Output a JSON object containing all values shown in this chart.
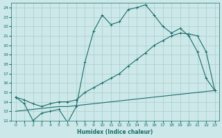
{
  "xlabel": "Humidex (Indice chaleur)",
  "background_color": "#cce8e8",
  "grid_color": "#aacccc",
  "line_color": "#1a6b6b",
  "xlim": [
    -0.5,
    23.5
  ],
  "ylim": [
    12,
    24.5
  ],
  "xticks": [
    0,
    1,
    2,
    3,
    4,
    5,
    6,
    7,
    8,
    9,
    10,
    11,
    12,
    13,
    14,
    15,
    16,
    17,
    18,
    19,
    20,
    21,
    22,
    23
  ],
  "yticks": [
    12,
    13,
    14,
    15,
    16,
    17,
    18,
    19,
    20,
    21,
    22,
    23,
    24
  ],
  "line1_x": [
    0,
    1,
    2,
    3,
    4,
    5,
    6,
    7,
    8,
    9,
    10,
    11,
    12,
    13,
    14,
    15,
    16,
    17,
    18,
    19,
    20,
    21,
    22,
    23
  ],
  "line1_y": [
    14.5,
    13.8,
    12.0,
    12.8,
    13.0,
    13.2,
    11.8,
    13.5,
    18.2,
    21.5,
    23.2,
    22.2,
    22.5,
    23.8,
    24.0,
    24.3,
    23.2,
    22.0,
    21.3,
    21.8,
    21.0,
    19.3,
    16.5,
    15.2
  ],
  "line2_x": [
    0,
    1,
    2,
    3,
    4,
    5,
    6,
    7,
    8,
    9,
    10,
    11,
    12,
    13,
    14,
    15,
    16,
    17,
    18,
    19,
    20,
    21,
    22,
    23
  ],
  "line2_y": [
    14.5,
    14.2,
    13.8,
    13.5,
    13.8,
    14.0,
    14.0,
    14.2,
    15.0,
    15.5,
    16.0,
    16.5,
    17.0,
    17.8,
    18.5,
    19.2,
    20.0,
    20.5,
    21.0,
    21.3,
    21.2,
    21.0,
    19.3,
    15.2
  ],
  "line3_x": [
    0,
    1,
    2,
    3,
    4,
    5,
    6,
    7,
    8,
    9,
    10,
    11,
    12,
    13,
    14,
    15,
    16,
    17,
    18,
    19,
    20,
    21,
    22,
    23
  ],
  "line3_y": [
    13.0,
    13.1,
    13.2,
    13.3,
    13.4,
    13.5,
    13.5,
    13.6,
    13.7,
    13.8,
    13.9,
    14.0,
    14.1,
    14.2,
    14.3,
    14.4,
    14.5,
    14.6,
    14.7,
    14.8,
    14.9,
    15.0,
    15.1,
    15.2
  ]
}
